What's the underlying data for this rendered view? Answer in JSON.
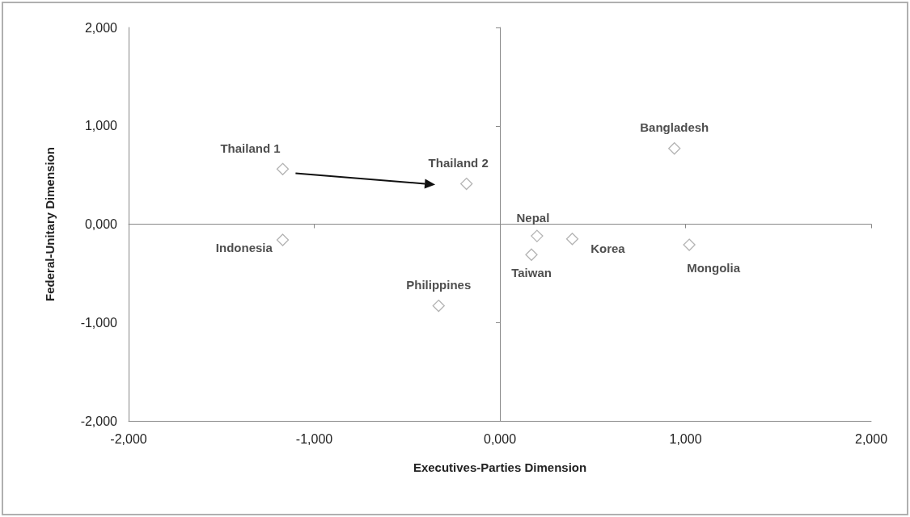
{
  "chart_data": {
    "type": "scatter",
    "xlabel": "Executives-Parties Dimension",
    "ylabel": "Federal-Unitary Dimension",
    "xlim": [
      -2,
      2
    ],
    "ylim": [
      -2,
      2
    ],
    "xticks": [
      {
        "value": -2,
        "label": "-2,000"
      },
      {
        "value": -1,
        "label": "-1,000"
      },
      {
        "value": 0,
        "label": "0,000"
      },
      {
        "value": 1,
        "label": "1,000"
      },
      {
        "value": 2,
        "label": "2,000"
      }
    ],
    "yticks": [
      {
        "value": -2,
        "label": "-2,000"
      },
      {
        "value": -1,
        "label": "-1,000"
      },
      {
        "value": 0,
        "label": "0,000"
      },
      {
        "value": 1,
        "label": "1,000"
      },
      {
        "value": 2,
        "label": "2,000"
      }
    ],
    "marker": "diamond",
    "legend": false,
    "series": [
      {
        "name": "Thailand 1",
        "color": "#a0a0a0",
        "x": [
          -1.17
        ],
        "values": [
          0.56
        ]
      },
      {
        "name": "Thailand 2",
        "color": "#a0a0a0",
        "x": [
          -0.18
        ],
        "values": [
          0.41
        ]
      },
      {
        "name": "Indonesia",
        "color": "#a0a0a0",
        "x": [
          -1.17
        ],
        "values": [
          -0.16
        ]
      },
      {
        "name": "Philippines",
        "color": "#a0a0a0",
        "x": [
          -0.33
        ],
        "values": [
          -0.83
        ]
      },
      {
        "name": "Nepal",
        "color": "#a0a0a0",
        "x": [
          0.2
        ],
        "values": [
          -0.12
        ]
      },
      {
        "name": "Taiwan",
        "color": "#a0a0a0",
        "x": [
          0.17
        ],
        "values": [
          -0.31
        ]
      },
      {
        "name": "Korea",
        "color": "#a0a0a0",
        "x": [
          0.39
        ],
        "values": [
          -0.15
        ]
      },
      {
        "name": "Bangladesh",
        "color": "#a0a0a0",
        "x": [
          0.94
        ],
        "values": [
          0.77
        ]
      },
      {
        "name": "Mongolia",
        "color": "#a0a0a0",
        "x": [
          1.02
        ],
        "values": [
          -0.21
        ]
      }
    ]
  }
}
